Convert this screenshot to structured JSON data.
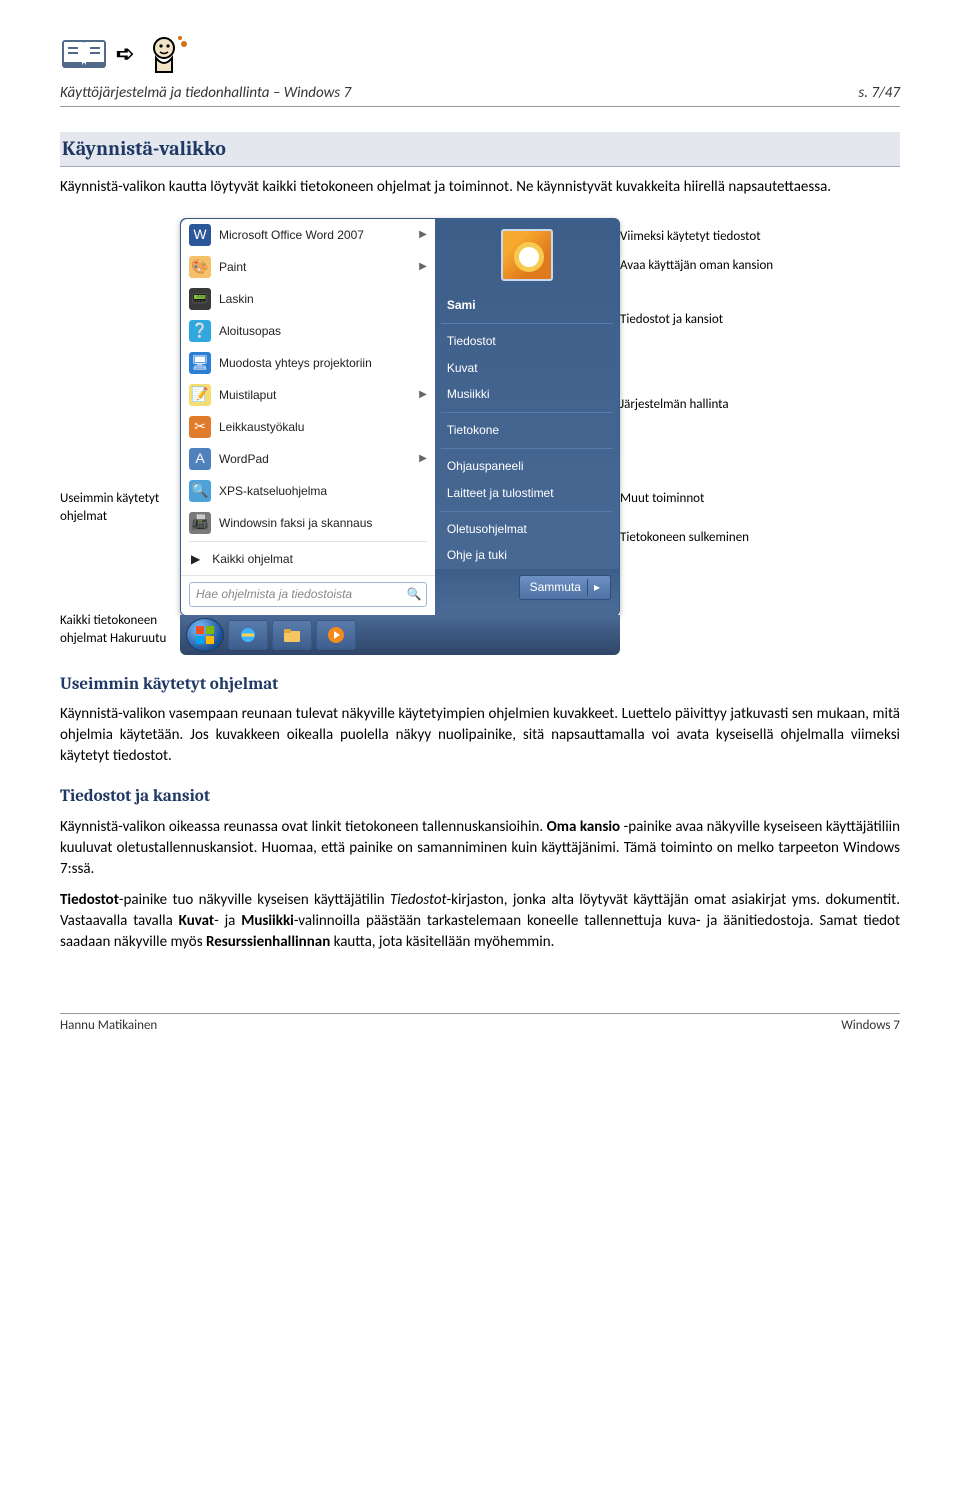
{
  "header": {
    "doc_title": "Käyttöjärjestelmä ja tiedonhallinta – Windows 7",
    "page_no": "s. 7/47"
  },
  "h2_start": "Käynnistä-valikko",
  "intro": "Käynnistä-valikon kautta löytyvät kaikki tietokoneen ohjelmat ja toiminnot. Ne käynnistyvät kuvakkeita hiirellä napsautettaessa.",
  "annot": {
    "useimmin": "Useimmin käytetyt ohjelmat",
    "kaikki": "Kaikki tietokoneen ohjelmat Hakuruutu",
    "viimeksi": "Viimeksi käytetyt tiedostot",
    "avaa": "Avaa käyttäjän oman kansion",
    "tiedostot": "Tiedostot ja kansiot",
    "jarjestelma": "Järjestelmän hallinta",
    "muut": "Muut toiminnot",
    "sulku": "Tietokoneen sulkeminen"
  },
  "startmenu": {
    "left_items": [
      {
        "icon": "#2b579a",
        "glyph": "W",
        "label": "Microsoft Office Word 2007",
        "arrow": true
      },
      {
        "icon": "#f4c069",
        "glyph": "🎨",
        "label": "Paint",
        "arrow": true
      },
      {
        "icon": "#3a3a3a",
        "glyph": "📟",
        "label": "Laskin",
        "arrow": false
      },
      {
        "icon": "#2fa8e0",
        "glyph": "❔",
        "label": "Aloitusopas",
        "arrow": false
      },
      {
        "icon": "#2d7fd6",
        "glyph": "🖥",
        "label": "Muodosta yhteys projektoriin",
        "arrow": false
      },
      {
        "icon": "#f7dd6f",
        "glyph": "📝",
        "label": "Muistilaput",
        "arrow": true
      },
      {
        "icon": "#e07b2c",
        "glyph": "✂",
        "label": "Leikkaustyökalu",
        "arrow": false
      },
      {
        "icon": "#4f81bd",
        "glyph": "A",
        "label": "WordPad",
        "arrow": true
      },
      {
        "icon": "#4da2da",
        "glyph": "🔍",
        "label": "XPS-katseluohjelma",
        "arrow": false
      },
      {
        "icon": "#7a7a7a",
        "glyph": "📠",
        "label": "Windowsin faksi ja skannaus",
        "arrow": false
      }
    ],
    "all_programs": "Kaikki ohjelmat",
    "search_placeholder": "Hae ohjelmista ja tiedostoista",
    "right_user": "Sami",
    "right_items1": [
      "Tiedostot",
      "Kuvat",
      "Musiikki"
    ],
    "right_items2": [
      "Tietokone"
    ],
    "right_items3": [
      "Ohjauspaneeli",
      "Laitteet ja tulostimet"
    ],
    "right_items4": [
      "Oletusohjelmat",
      "Ohje ja tuki"
    ],
    "shutdown": "Sammuta"
  },
  "h3_useimmin": "Useimmin käytetyt ohjelmat",
  "para_useimmin": "Käynnistä-valikon vasempaan reunaan tulevat näkyville käytetyimpien ohjelmien kuvakkeet. Luettelo päivittyy jatkuvasti sen mukaan, mitä ohjelmia käytetään. Jos kuvakkeen oikealla puolella näkyy nuolipainike, sitä napsauttamalla voi avata kyseisellä ohjelmalla viimeksi käytetyt tiedostot.",
  "h3_tiedostot": "Tiedostot ja kansiot",
  "para_tiedostot1_a": "Käynnistä-valikon oikeassa reunassa ovat linkit tietokoneen tallennuskansioihin. ",
  "para_tiedostot1_bold1": "Oma kansio",
  "para_tiedostot1_b": " -painike avaa näkyville kyseiseen käyttäjätiliin kuuluvat oletustallennuskansiot. Huomaa, että painike on samanniminen kuin käyttäjänimi. Tämä toiminto on melko tarpeeton Windows 7:ssä.",
  "para_tiedostot2_bold1": "Tiedostot",
  "para_tiedostot2_a": "-painike tuo näkyville kyseisen käyttäjätilin ",
  "para_tiedostot2_em": "Tiedostot",
  "para_tiedostot2_b": "-kirjaston, jonka alta löytyvät käyttäjän omat asiakirjat yms. dokumentit. Vastaavalla tavalla ",
  "para_tiedostot2_bold2": "Kuvat",
  "para_tiedostot2_c": "- ja ",
  "para_tiedostot2_bold3": "Musiikki",
  "para_tiedostot2_d": "-valinnoilla päästään tarkastelemaan koneelle tallennettuja kuva- ja äänitiedostoja. Samat tiedot saadaan näkyville myös ",
  "para_tiedostot2_bold4": "Resurssienhallinnan",
  "para_tiedostot2_e": " kautta, jota käsitellään myöhemmin.",
  "footer": {
    "author": "Hannu Matikainen",
    "product": "Windows 7"
  }
}
